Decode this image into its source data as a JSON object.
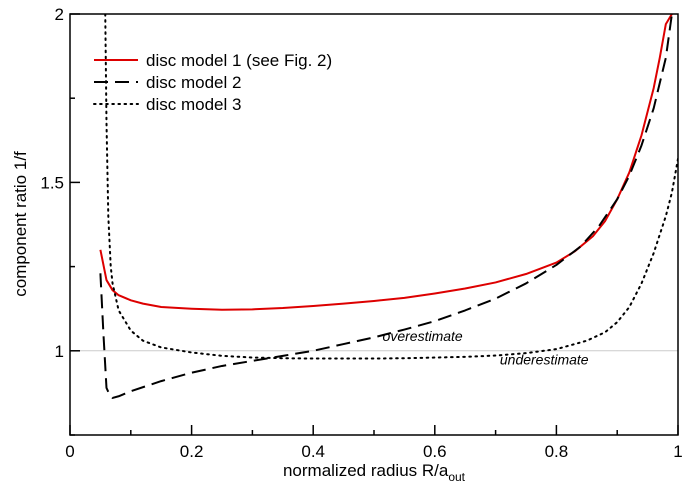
{
  "chart_data": {
    "type": "line",
    "title": "",
    "xlabel": "normalized radius R/a",
    "xlabel_sub": "out",
    "ylabel": "component ratio 1/f",
    "xlim": [
      0,
      1
    ],
    "ylim": [
      0.75,
      2.0
    ],
    "xticks": [
      0,
      0.2,
      0.4,
      0.6,
      0.8,
      1
    ],
    "xtick_labels": [
      "0",
      "0.2",
      "0.4",
      "0.6",
      "0.8",
      "1"
    ],
    "yticks": [
      1,
      1.5,
      2
    ],
    "ytick_labels": [
      "1",
      "1.5",
      "2"
    ],
    "grid": false,
    "legend_position": "top-left",
    "reference_line": {
      "y": 1.0,
      "color": "#cccccc"
    },
    "annotations": [
      {
        "text": "overestimate",
        "x": 0.58,
        "y": 1.02
      },
      {
        "text": "underestimate",
        "x": 0.78,
        "y": 0.95
      }
    ],
    "series": [
      {
        "name": "disc model 1 (see Fig. 2)",
        "color": "#dd0000",
        "style": "solid",
        "x": [
          0.05,
          0.06,
          0.07,
          0.08,
          0.1,
          0.12,
          0.15,
          0.2,
          0.25,
          0.3,
          0.35,
          0.4,
          0.45,
          0.5,
          0.55,
          0.6,
          0.65,
          0.7,
          0.75,
          0.8,
          0.83,
          0.86,
          0.88,
          0.9,
          0.92,
          0.94,
          0.96,
          0.97,
          0.98,
          0.99
        ],
        "y": [
          1.3,
          1.21,
          1.18,
          1.165,
          1.15,
          1.14,
          1.13,
          1.125,
          1.122,
          1.123,
          1.127,
          1.133,
          1.14,
          1.148,
          1.157,
          1.17,
          1.185,
          1.203,
          1.228,
          1.262,
          1.295,
          1.34,
          1.385,
          1.45,
          1.53,
          1.64,
          1.78,
          1.87,
          1.97,
          2.0
        ]
      },
      {
        "name": "disc model 2",
        "color": "#000000",
        "style": "dashed",
        "x": [
          0.05,
          0.055,
          0.06,
          0.065,
          0.07,
          0.08,
          0.1,
          0.15,
          0.2,
          0.25,
          0.3,
          0.35,
          0.4,
          0.45,
          0.5,
          0.55,
          0.6,
          0.65,
          0.7,
          0.75,
          0.8,
          0.84,
          0.87,
          0.9,
          0.92,
          0.94,
          0.96,
          0.98,
          0.99
        ],
        "y": [
          1.23,
          1.05,
          0.89,
          0.87,
          0.86,
          0.865,
          0.88,
          0.91,
          0.935,
          0.955,
          0.97,
          0.985,
          1.0,
          1.02,
          1.04,
          1.063,
          1.088,
          1.12,
          1.155,
          1.2,
          1.255,
          1.31,
          1.37,
          1.45,
          1.52,
          1.61,
          1.72,
          1.87,
          2.0
        ]
      },
      {
        "name": "disc model 3",
        "color": "#000000",
        "style": "dotted",
        "x": [
          0.058,
          0.06,
          0.063,
          0.067,
          0.07,
          0.08,
          0.1,
          0.12,
          0.15,
          0.2,
          0.25,
          0.3,
          0.35,
          0.4,
          0.45,
          0.5,
          0.55,
          0.6,
          0.65,
          0.7,
          0.75,
          0.8,
          0.85,
          0.88,
          0.9,
          0.92,
          0.94,
          0.96,
          0.98,
          0.99,
          1.0
        ],
        "y": [
          2.0,
          1.68,
          1.4,
          1.25,
          1.2,
          1.12,
          1.06,
          1.03,
          1.01,
          0.995,
          0.985,
          0.98,
          0.978,
          0.977,
          0.977,
          0.977,
          0.978,
          0.98,
          0.982,
          0.986,
          0.993,
          1.005,
          1.03,
          1.055,
          1.085,
          1.13,
          1.2,
          1.29,
          1.4,
          1.47,
          1.57
        ]
      }
    ]
  }
}
